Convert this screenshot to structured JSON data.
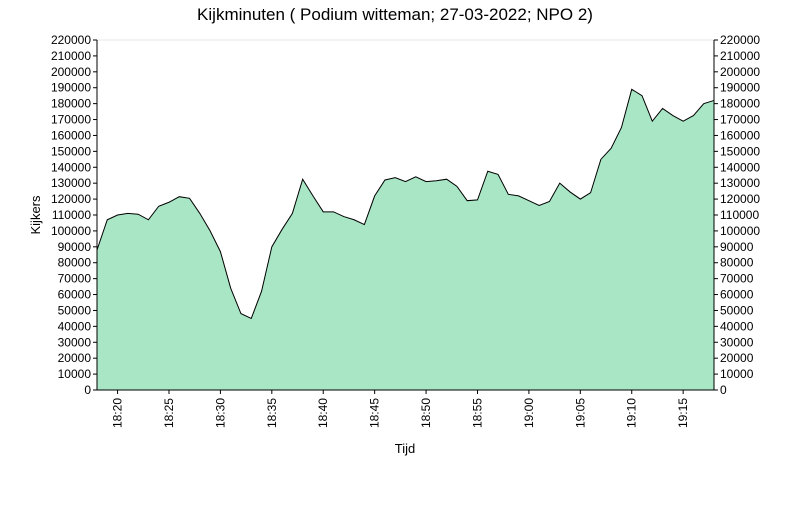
{
  "chart_data": {
    "type": "area",
    "title": "Kijkminuten ( Podium witteman; 27-03-2022; NPO 2)",
    "xlabel": "Tijd",
    "ylabel": "Kijkers",
    "ylim": [
      0,
      220000
    ],
    "y_ticks": [
      0,
      10000,
      20000,
      30000,
      40000,
      50000,
      60000,
      70000,
      80000,
      90000,
      100000,
      110000,
      120000,
      130000,
      140000,
      150000,
      160000,
      170000,
      180000,
      190000,
      200000,
      210000,
      220000
    ],
    "x_ticks": [
      "18:20",
      "18:25",
      "18:30",
      "18:35",
      "18:40",
      "18:45",
      "18:50",
      "18:55",
      "19:00",
      "19:05",
      "19:10",
      "19:15"
    ],
    "grid": false,
    "colors": {
      "fill": "#a8e6c5",
      "line": "#000000"
    },
    "x": [
      "18:18",
      "18:19",
      "18:20",
      "18:21",
      "18:22",
      "18:23",
      "18:24",
      "18:25",
      "18:26",
      "18:27",
      "18:28",
      "18:29",
      "18:30",
      "18:31",
      "18:32",
      "18:33",
      "18:34",
      "18:35",
      "18:36",
      "18:37",
      "18:38",
      "18:39",
      "18:40",
      "18:41",
      "18:42",
      "18:43",
      "18:44",
      "18:45",
      "18:46",
      "18:47",
      "18:48",
      "18:49",
      "18:50",
      "18:51",
      "18:52",
      "18:53",
      "18:54",
      "18:55",
      "18:56",
      "18:57",
      "18:58",
      "18:59",
      "19:00",
      "19:01",
      "19:02",
      "19:03",
      "19:04",
      "19:05",
      "19:06",
      "19:07",
      "19:08",
      "19:09",
      "19:10",
      "19:11",
      "19:12",
      "19:13",
      "19:14",
      "19:15",
      "19:16",
      "19:17",
      "19:18"
    ],
    "series": [
      {
        "values": [
          88000,
          107000,
          110000,
          111000,
          110500,
          107000,
          115500,
          118000,
          121500,
          120500,
          111000,
          100000,
          87000,
          64000,
          48000,
          45000,
          62000,
          90000,
          101000,
          111000,
          132500,
          122000,
          112000,
          112000,
          109000,
          107000,
          104000,
          122000,
          132000,
          133500,
          131000,
          134000,
          131000,
          131500,
          132500,
          128000,
          119000,
          119500,
          137500,
          135500,
          123000,
          122000,
          119000,
          116000,
          118500,
          130000,
          124500,
          120000,
          124000,
          145000,
          152000,
          165000,
          189000,
          185000,
          169000,
          177000,
          172500,
          169000,
          172500,
          180000,
          182000
        ]
      }
    ]
  }
}
